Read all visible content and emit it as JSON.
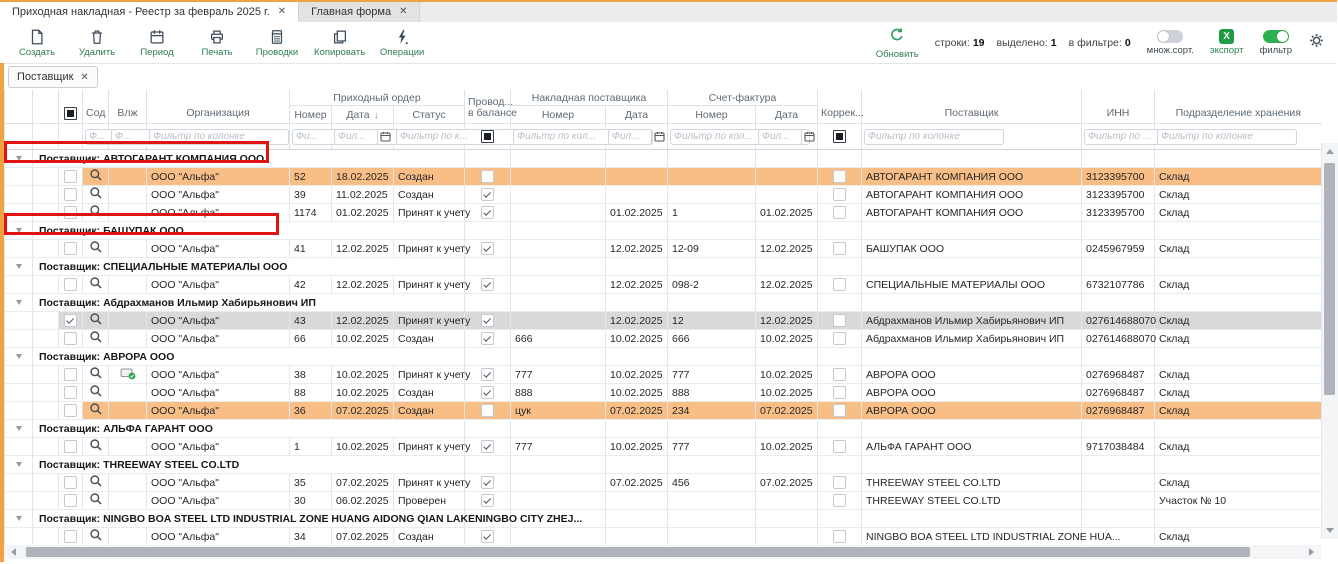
{
  "tabs": [
    {
      "label": "Приходная накладная - Реестр за февраль 2025 г.",
      "active": true
    },
    {
      "label": "Главная форма",
      "active": false
    }
  ],
  "toolbar": {
    "create": "Создать",
    "delete": "Удалить",
    "period": "Период",
    "print": "Печать",
    "postings": "Проводки",
    "copy": "Копировать",
    "operations": "Операции",
    "refresh": "Обновить",
    "stats": {
      "rows_label": "строки:",
      "rows": "19",
      "selected_label": "выделено:",
      "selected": "1",
      "filtered_label": "в фильтре:",
      "filtered": "0"
    },
    "multisort": "множ.сорт.",
    "export": "экспорт",
    "export_letter": "X",
    "filter": "фильтр"
  },
  "filter_chip": {
    "label": "Поставщик",
    "close": "✕"
  },
  "table": {
    "group_headers": {
      "order": "Приходный ордер",
      "supplier_invoice": "Накладная поставщика",
      "invoice": "Счет-фактура"
    },
    "headers": {
      "sod": "Сод",
      "vlzh": "Влж",
      "org": "Организация",
      "number": "Номер",
      "date": "Дата",
      "status": "Статус",
      "posted_l1": "Провод...",
      "posted_l2": "в балансе",
      "inv_number": "Номер",
      "inv_date": "Дата",
      "sf_number": "Номер",
      "sf_date": "Дата",
      "correction": "Коррек...",
      "supplier": "Поставщик",
      "inn": "ИНН",
      "division": "Подразделение хранения"
    },
    "filters": {
      "sod": "Ф...",
      "vlzh": "Ф...",
      "org": "Фильтр по колонке",
      "number": "Фи...",
      "date": "Фил...",
      "status": "Фильтр по к...",
      "inv_number": "Фильтр по кол...",
      "inv_date": "Фил...",
      "sf_number": "Фильтр по кол...",
      "sf_date": "Фил...",
      "supplier": "Фильтр по колонке",
      "inn": "Фильтр по ...",
      "division": "Фильтр по колонке"
    }
  },
  "groups": [
    {
      "label": "Поставщик: АВТОГАРАНТ КОМПАНИЯ ООО",
      "annotated": true,
      "rows": [
        {
          "org": "ООО \"Альфа\"",
          "number": "52",
          "date": "18.02.2025",
          "status": "Создан",
          "posted": false,
          "inv_number": "",
          "inv_date": "",
          "sf_number": "",
          "sf_date": "",
          "supplier": "АВТОГАРАНТ КОМПАНИЯ ООО",
          "inn": "3123395700",
          "division": "Склад",
          "highlight": "orange"
        },
        {
          "org": "ООО \"Альфа\"",
          "number": "39",
          "date": "11.02.2025",
          "status": "Создан",
          "posted": true,
          "inv_number": "",
          "inv_date": "",
          "sf_number": "",
          "sf_date": "",
          "supplier": "АВТОГАРАНТ КОМПАНИЯ ООО",
          "inn": "3123395700",
          "division": "Склад"
        },
        {
          "org": "ООО \"Альфа\"",
          "number": "1174",
          "date": "01.02.2025",
          "status": "Принят к учету",
          "posted": true,
          "inv_number": "",
          "inv_date": "01.02.2025",
          "sf_number": "1",
          "sf_date": "01.02.2025",
          "supplier": "АВТОГАРАНТ КОМПАНИЯ ООО",
          "inn": "3123395700",
          "division": "Склад"
        }
      ]
    },
    {
      "label": "Поставщик: БАШУПАК ООО",
      "annotated": true,
      "rows": [
        {
          "org": "ООО \"Альфа\"",
          "number": "41",
          "date": "12.02.2025",
          "status": "Принят к учету",
          "posted": true,
          "inv_number": "",
          "inv_date": "12.02.2025",
          "sf_number": "12-09",
          "sf_date": "12.02.2025",
          "supplier": "БАШУПАК ООО",
          "inn": "0245967959",
          "division": "Склад"
        }
      ]
    },
    {
      "label": "Поставщик: СПЕЦИАЛЬНЫЕ МАТЕРИАЛЫ ООО",
      "annotated": false,
      "rows": [
        {
          "org": "ООО \"Альфа\"",
          "number": "42",
          "date": "12.02.2025",
          "status": "Принят к учету",
          "posted": true,
          "inv_number": "",
          "inv_date": "12.02.2025",
          "sf_number": "098-2",
          "sf_date": "12.02.2025",
          "supplier": "СПЕЦИАЛЬНЫЕ МАТЕРИАЛЫ ООО",
          "inn": "6732107786",
          "division": "Склад"
        }
      ]
    },
    {
      "label": "Поставщик: Абдрахманов Ильмир Хабирьянович ИП",
      "annotated": false,
      "rows": [
        {
          "org": "ООО \"Альфа\"",
          "number": "43",
          "date": "12.02.2025",
          "status": "Принят к учету",
          "posted": true,
          "inv_number": "",
          "inv_date": "12.02.2025",
          "sf_number": "12",
          "sf_date": "12.02.2025",
          "supplier": "Абдрахманов Ильмир Хабирьянович ИП",
          "inn": "027614688070",
          "division": "Склад",
          "highlight": "selected",
          "checked": true
        },
        {
          "org": "ООО \"Альфа\"",
          "number": "66",
          "date": "10.02.2025",
          "status": "Создан",
          "posted": true,
          "inv_number": "666",
          "inv_date": "10.02.2025",
          "sf_number": "666",
          "sf_date": "10.02.2025",
          "supplier": "Абдрахманов Ильмир Хабирьянович ИП",
          "inn": "027614688070",
          "division": "Склад"
        }
      ]
    },
    {
      "label": "Поставщик: АВРОРА ООО",
      "annotated": false,
      "rows": [
        {
          "org": "ООО \"Альфа\"",
          "number": "38",
          "date": "10.02.2025",
          "status": "Принят к учету",
          "posted": true,
          "inv_number": "777",
          "inv_date": "10.02.2025",
          "sf_number": "777",
          "sf_date": "10.02.2025",
          "supplier": "АВРОРА ООО",
          "inn": "0276968487",
          "division": "Склад",
          "attachment": true
        },
        {
          "org": "ООО \"Альфа\"",
          "number": "88",
          "date": "10.02.2025",
          "status": "Создан",
          "posted": true,
          "inv_number": "888",
          "inv_date": "10.02.2025",
          "sf_number": "888",
          "sf_date": "10.02.2025",
          "supplier": "АВРОРА ООО",
          "inn": "0276968487",
          "division": "Склад"
        },
        {
          "org": "ООО \"Альфа\"",
          "number": "36",
          "date": "07.02.2025",
          "status": "Создан",
          "posted": false,
          "inv_number": "цук",
          "inv_date": "07.02.2025",
          "sf_number": "234",
          "sf_date": "07.02.2025",
          "supplier": "АВРОРА ООО",
          "inn": "0276968487",
          "division": "Склад",
          "highlight": "orange"
        }
      ]
    },
    {
      "label": "Поставщик: АЛЬФА ГАРАНТ ООО",
      "annotated": false,
      "rows": [
        {
          "org": "ООО \"Альфа\"",
          "number": "1",
          "date": "10.02.2025",
          "status": "Принят к учету",
          "posted": true,
          "inv_number": "777",
          "inv_date": "10.02.2025",
          "sf_number": "777",
          "sf_date": "10.02.2025",
          "supplier": "АЛЬФА ГАРАНТ ООО",
          "inn": "9717038484",
          "division": "Склад"
        }
      ]
    },
    {
      "label": "Поставщик: THREEWAY STEEL CO.LTD",
      "annotated": false,
      "rows": [
        {
          "org": "ООО \"Альфа\"",
          "number": "35",
          "date": "07.02.2025",
          "status": "Принят к учету",
          "posted": true,
          "inv_number": "",
          "inv_date": "07.02.2025",
          "sf_number": "456",
          "sf_date": "07.02.2025",
          "supplier": "THREEWAY STEEL CO.LTD",
          "inn": "",
          "division": "Склад"
        },
        {
          "org": "ООО \"Альфа\"",
          "number": "30",
          "date": "06.02.2025",
          "status": "Проверен",
          "posted": true,
          "inv_number": "",
          "inv_date": "",
          "sf_number": "",
          "sf_date": "",
          "supplier": "THREEWAY STEEL CO.LTD",
          "inn": "",
          "division": "Участок № 10"
        }
      ]
    },
    {
      "label": "Поставщик: NINGBO BOA STEEL LTD INDUSTRIAL ZONE HUANG AIDONG QIAN LAKENINGBO CITY ZHEJ...",
      "annotated": false,
      "rows": [
        {
          "org": "ООО \"Альфа\"",
          "number": "34",
          "date": "07.02.2025",
          "status": "Создан",
          "posted": true,
          "inv_number": "",
          "inv_date": "",
          "sf_number": "",
          "sf_date": "",
          "supplier": "NINGBO BOA STEEL LTD INDUSTRIAL ZONE HUA...",
          "inn": "",
          "division": "Склад"
        }
      ]
    }
  ],
  "colors": {
    "accent_orange": "#F2A341",
    "row_orange": "#F9BE85",
    "row_selected": "#D9D9D9",
    "annotation_red": "#E11414",
    "toolbar_green": "#2E7D52",
    "excel_green": "#1F9D44",
    "toggle_on_green": "#2DB04F"
  }
}
